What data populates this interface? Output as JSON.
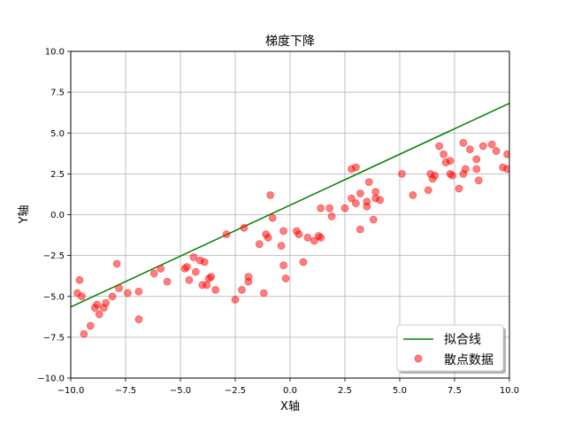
{
  "chart_data": {
    "type": "scatter",
    "title": "梯度下降",
    "xlabel": "X轴",
    "ylabel": "Y轴",
    "xlim": [
      -10,
      10
    ],
    "ylim": [
      -10,
      10
    ],
    "x_ticks": [
      -10,
      -7.5,
      -5,
      -2.5,
      0,
      2.5,
      5,
      7.5,
      10
    ],
    "y_ticks": [
      -10,
      -7.5,
      -5,
      -2.5,
      0,
      2.5,
      5,
      7.5,
      10
    ],
    "x_tick_labels": [
      "−10.0",
      "−7.5",
      "−5.0",
      "−2.5",
      "0.0",
      "2.5",
      "5.0",
      "7.5",
      "10.0"
    ],
    "y_tick_labels": [
      "−10.0",
      "−7.5",
      "−5.0",
      "−2.5",
      "0.0",
      "2.5",
      "5.0",
      "7.5",
      "10.0"
    ],
    "grid": true,
    "legend_position": "lower-right",
    "series": [
      {
        "name": "拟合线",
        "kind": "line",
        "color": "#008000",
        "x": [
          -10,
          10
        ],
        "y": [
          -5.65,
          6.82
        ]
      },
      {
        "name": "散点数据",
        "kind": "scatter",
        "color": "#ff0000",
        "alpha": 0.5,
        "x": [
          -9.7,
          -9.6,
          -9.5,
          -9.4,
          -9.1,
          -8.9,
          -8.8,
          -8.7,
          -8.5,
          -8.4,
          -8.1,
          -7.9,
          -7.8,
          -7.4,
          -6.9,
          -6.9,
          -6.2,
          -5.9,
          -5.6,
          -4.8,
          -4.7,
          -4.6,
          -4.4,
          -4.3,
          -4.1,
          -4.0,
          -3.9,
          -3.8,
          -3.7,
          -3.6,
          -3.4,
          -2.9,
          -2.5,
          -2.2,
          -2.1,
          -1.9,
          -1.9,
          -1.4,
          -1.2,
          -1.1,
          -1.0,
          -0.9,
          -0.8,
          -0.4,
          -0.3,
          -0.3,
          -0.2,
          0.3,
          0.4,
          0.6,
          0.8,
          1.1,
          1.3,
          1.4,
          1.4,
          1.8,
          1.9,
          2.5,
          2.8,
          2.8,
          3.0,
          3.0,
          3.2,
          3.2,
          3.5,
          3.5,
          3.6,
          3.8,
          3.9,
          3.9,
          4.1,
          5.1,
          5.6,
          6.3,
          6.4,
          6.5,
          6.6,
          6.8,
          7.0,
          7.1,
          7.3,
          7.3,
          7.4,
          7.7,
          7.9,
          7.9,
          8.0,
          8.2,
          8.5,
          8.5,
          8.6,
          8.8,
          9.2,
          9.4,
          9.7,
          9.9,
          9.9
        ],
        "y": [
          -4.8,
          -4.0,
          -5.0,
          -7.3,
          -6.8,
          -5.7,
          -5.5,
          -6.1,
          -5.7,
          -5.4,
          -5.0,
          -3.0,
          -4.5,
          -4.8,
          -6.4,
          -4.7,
          -3.6,
          -3.3,
          -4.1,
          -3.3,
          -3.2,
          -4.0,
          -2.6,
          -3.5,
          -2.8,
          -4.3,
          -2.9,
          -4.3,
          -3.9,
          -3.8,
          -4.6,
          -1.2,
          -5.2,
          -4.6,
          -0.8,
          -4.1,
          -3.8,
          -1.8,
          -4.8,
          -1.2,
          -1.4,
          1.2,
          -0.2,
          -1.9,
          -1.0,
          -3.1,
          -3.9,
          -1.0,
          -1.2,
          -2.9,
          -1.4,
          -1.6,
          -1.3,
          -1.4,
          0.4,
          0.4,
          -0.1,
          0.4,
          2.8,
          1.0,
          0.7,
          2.9,
          -0.9,
          1.3,
          0.5,
          0.8,
          2.0,
          -0.3,
          1.0,
          1.4,
          0.9,
          2.5,
          1.2,
          1.5,
          2.5,
          2.2,
          2.4,
          4.2,
          3.7,
          3.2,
          2.5,
          3.3,
          2.4,
          1.6,
          2.5,
          4.4,
          2.8,
          4.0,
          3.4,
          2.8,
          2.1,
          4.2,
          4.3,
          3.9,
          2.9,
          2.8,
          3.7
        ]
      }
    ]
  }
}
